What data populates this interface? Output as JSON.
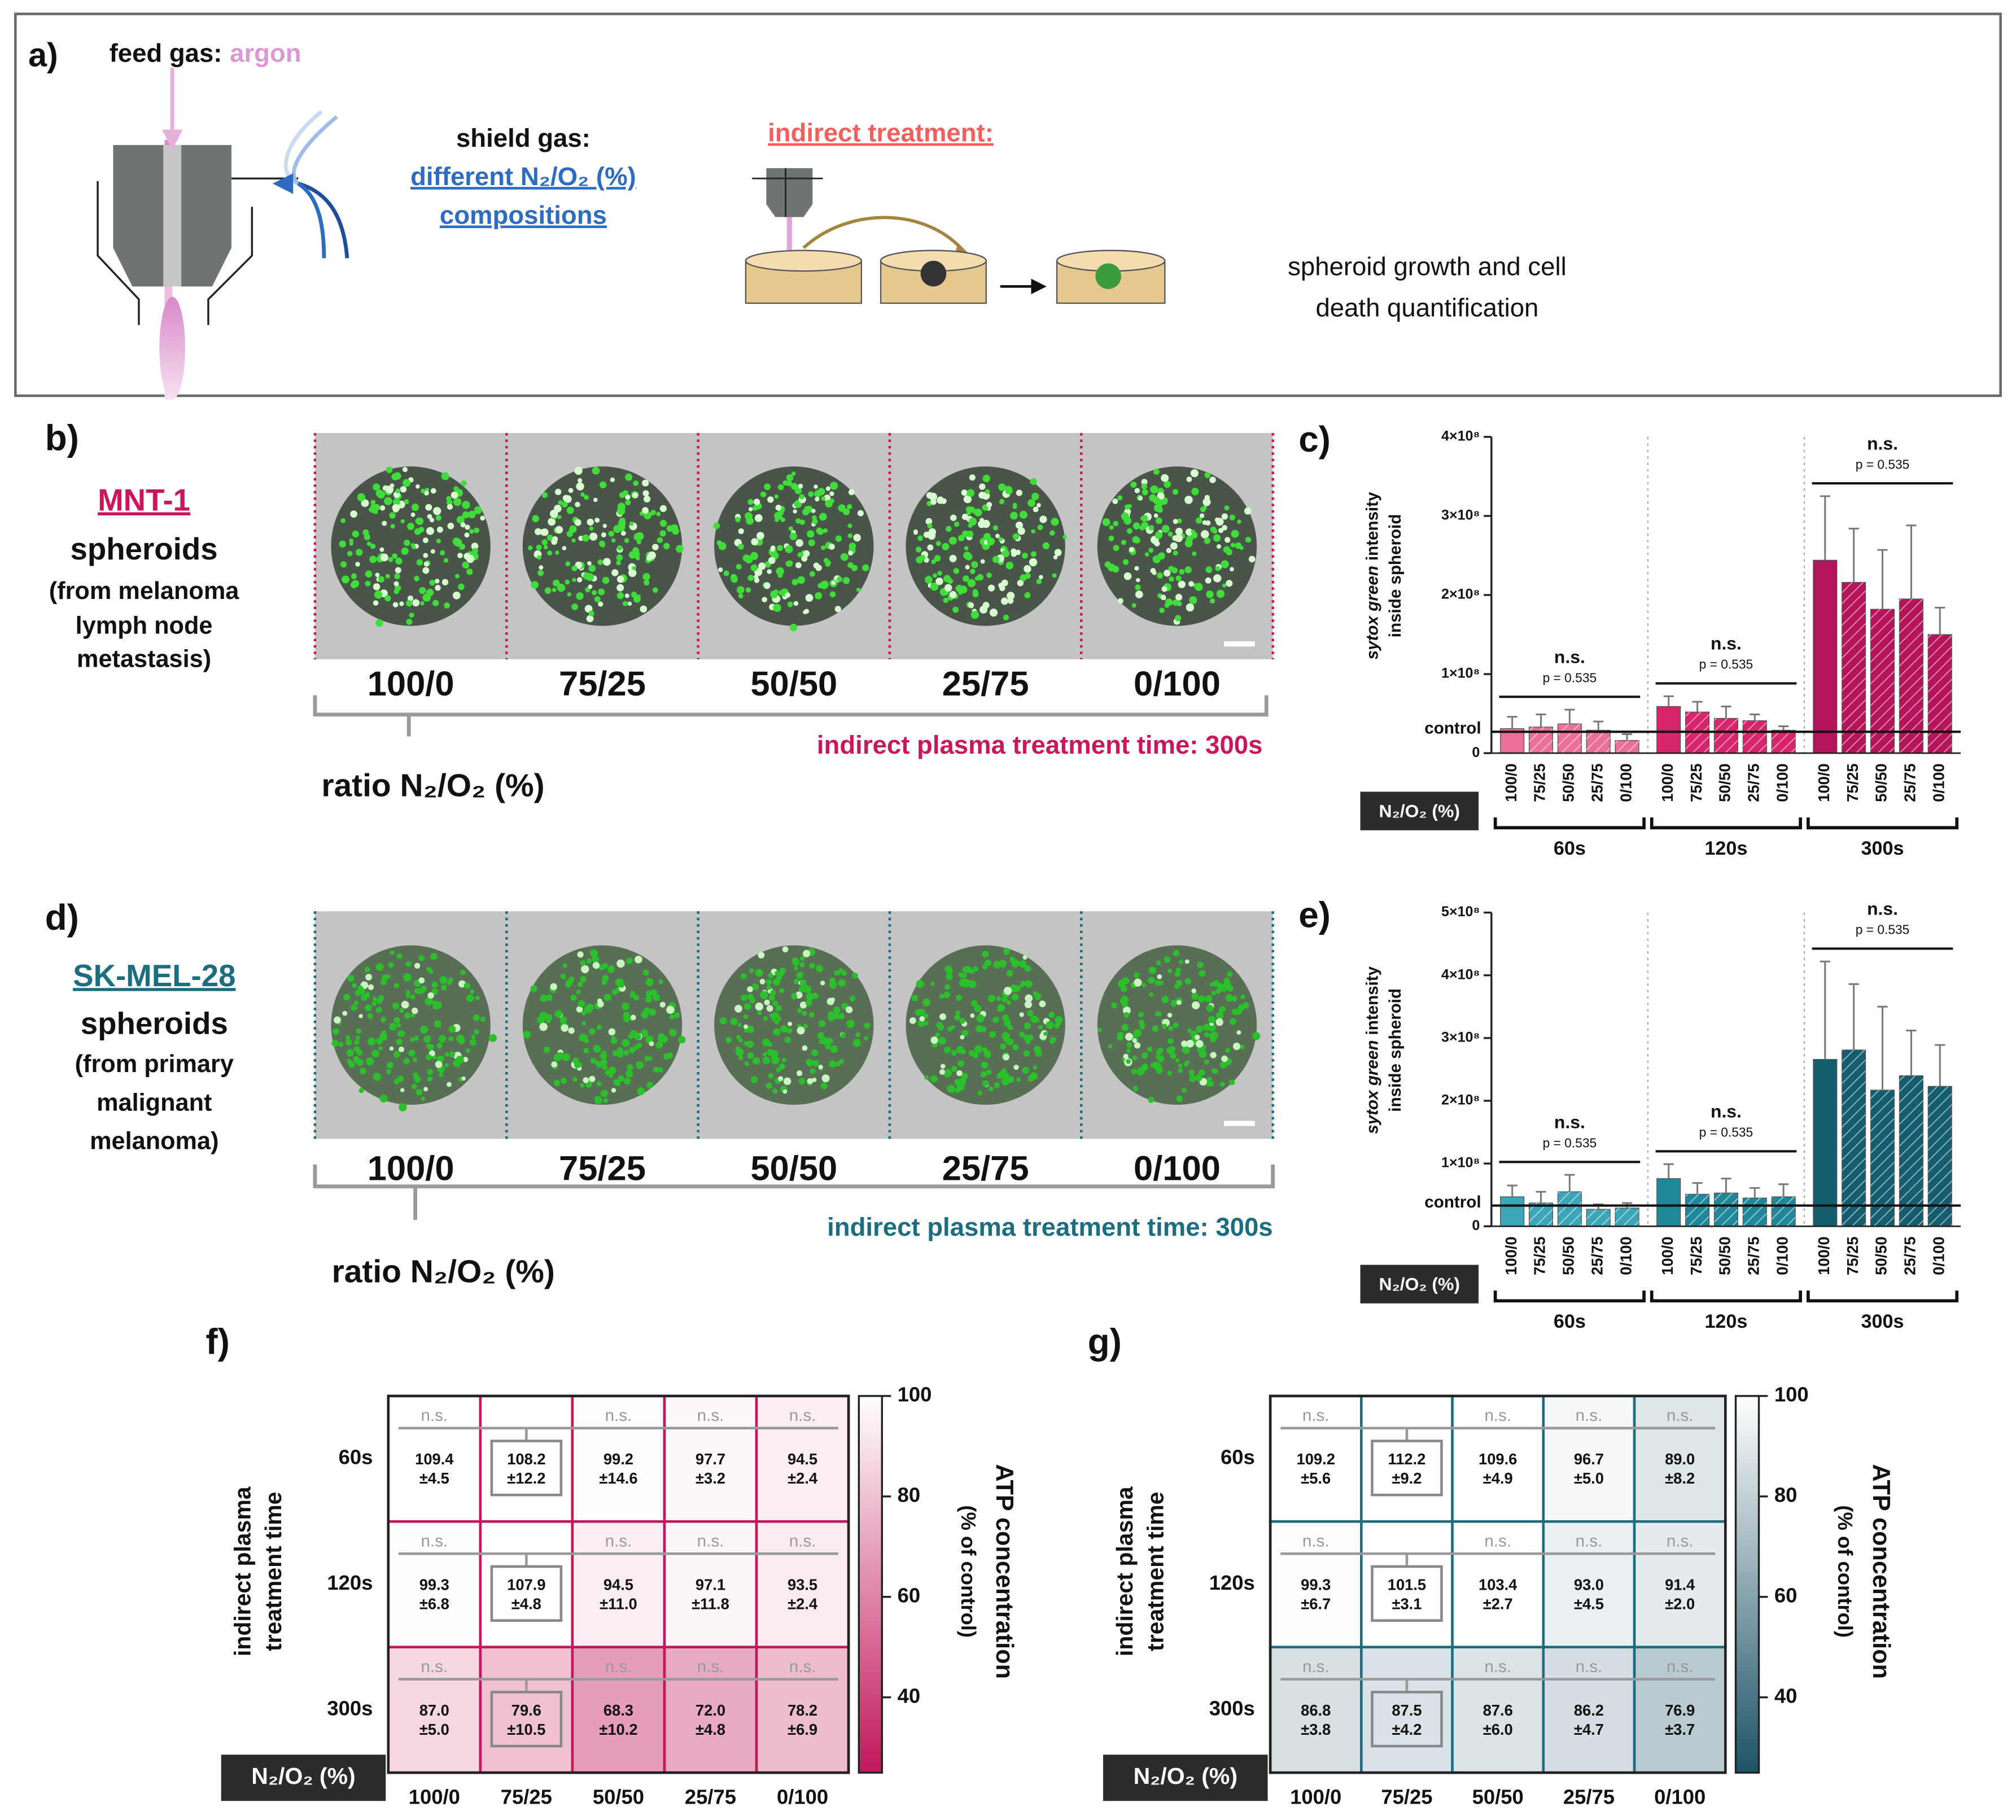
{
  "panel_a": {
    "label": "a)",
    "feed_gas": "feed gas:",
    "feed_gas_value": "argon",
    "shield_gas": "shield gas:",
    "shield_gas_lines": [
      "different N₂/O₂ (%)",
      "compositions"
    ],
    "treatment": "indirect treatment:",
    "readout_lines": [
      "spheroid growth and cell",
      "death quantification"
    ]
  },
  "panel_b": {
    "label": "b)",
    "cell_line": "MNT-1",
    "description": [
      "spheroids",
      "(from melanoma",
      "lymph node",
      "metastasis)"
    ],
    "ratios": [
      "100/0",
      "75/25",
      "50/50",
      "25/75",
      "0/100"
    ],
    "ratio_label": "ratio N₂/O₂ (%)",
    "treatment_time": "indirect plasma treatment time: 300s",
    "color": "#c8175d"
  },
  "panel_d": {
    "label": "d)",
    "cell_line": "SK-MEL-28",
    "description": [
      "spheroids",
      "(from primary",
      "malignant",
      "melanoma)"
    ],
    "ratios": [
      "100/0",
      "75/25",
      "50/50",
      "25/75",
      "0/100"
    ],
    "ratio_label": "ratio N₂/O₂ (%)",
    "treatment_time": "indirect plasma treatment time: 300s",
    "color": "#1b6e80"
  },
  "chart_data": [
    {
      "type": "bar",
      "label": "c)",
      "y_label_italic": "sytox green",
      "y_label_rest": "intensity",
      "y_label_line2": "inside spheroid",
      "categories": [
        "100/0",
        "75/25",
        "50/50",
        "25/75",
        "0/100"
      ],
      "category_title": "N₂/O₂ (%)",
      "series": [
        {
          "name": "60s",
          "color": "#ea6f9a",
          "values": [
            31000000,
            33000000,
            37000000,
            29000000,
            16000000
          ],
          "errors": [
            15000000,
            16000000,
            18000000,
            11000000,
            8000000
          ]
        },
        {
          "name": "120s",
          "color": "#d8246a",
          "values": [
            59000000,
            52000000,
            44000000,
            41000000,
            29000000
          ],
          "errors": [
            13000000,
            13000000,
            15000000,
            8000000,
            5000000
          ]
        },
        {
          "name": "300s",
          "color": "#b5135a",
          "values": [
            244000000,
            216000000,
            182000000,
            195000000,
            150000000
          ],
          "errors": [
            81000000,
            68000000,
            75000000,
            93000000,
            34000000
          ]
        }
      ],
      "ylim": [
        0,
        400000000
      ],
      "yticks": [
        0,
        {
          "value": 100000000,
          "label": "1×10⁸"
        },
        {
          "value": 200000000,
          "label": "2×10⁸"
        },
        {
          "value": 300000000,
          "label": "3×10⁸"
        },
        {
          "value": 400000000,
          "label": "4×10⁸"
        }
      ],
      "control_label": "control",
      "control_value": 27000000,
      "significance": {
        "label": "n.s.",
        "p_label": "p = 0.535"
      }
    },
    {
      "type": "bar",
      "label": "e)",
      "y_label_italic": "sytox green",
      "y_label_rest": "intensity",
      "y_label_line2": "inside spheroid",
      "categories": [
        "100/0",
        "75/25",
        "50/50",
        "25/75",
        "0/100"
      ],
      "category_title": "N₂/O₂ (%)",
      "series": [
        {
          "name": "60s",
          "color": "#3ba6b7",
          "values": [
            47000000,
            37000000,
            55000000,
            27000000,
            29000000
          ],
          "errors": [
            18000000,
            18000000,
            27000000,
            8000000,
            8000000
          ]
        },
        {
          "name": "120s",
          "color": "#1f8799",
          "values": [
            76000000,
            51000000,
            53000000,
            45000000,
            47000000
          ],
          "errors": [
            23000000,
            18000000,
            23000000,
            16000000,
            20000000
          ]
        },
        {
          "name": "300s",
          "color": "#145d6e",
          "values": [
            266000000,
            281000000,
            217000000,
            240000000,
            223000000
          ],
          "errors": [
            156000000,
            105000000,
            133000000,
            72000000,
            66000000
          ]
        }
      ],
      "ylim": [
        0,
        500000000
      ],
      "yticks": [
        0,
        {
          "value": 100000000,
          "label": "1×10⁸"
        },
        {
          "value": 200000000,
          "label": "2×10⁸"
        },
        {
          "value": 300000000,
          "label": "3×10⁸"
        },
        {
          "value": 400000000,
          "label": "4×10⁸"
        },
        {
          "value": 500000000,
          "label": "5×10⁸"
        }
      ],
      "control_label": "control",
      "control_value": 33000000,
      "significance": {
        "label": "n.s.",
        "p_label": "p = 0.535"
      }
    },
    {
      "type": "heatmap",
      "label": "f)",
      "rows": [
        "60s",
        "120s",
        "300s"
      ],
      "categories": [
        "100/0",
        "75/25",
        "50/50",
        "25/75",
        "0/100"
      ],
      "values": [
        [
          109.4,
          108.2,
          99.2,
          97.7,
          94.5
        ],
        [
          99.3,
          107.9,
          94.5,
          97.1,
          93.5
        ],
        [
          87.0,
          79.6,
          68.3,
          72.0,
          78.2
        ]
      ],
      "value_labels": [
        [
          "109.4",
          "108.2",
          "99.2",
          "97.7",
          "94.5"
        ],
        [
          "99.3",
          "107.9",
          "94.5",
          "97.1",
          "93.5"
        ],
        [
          "87.0",
          "79.6",
          "68.3",
          "72.0",
          "78.2"
        ]
      ],
      "errors": [
        [
          4.5,
          12.2,
          14.6,
          3.2,
          2.4
        ],
        [
          6.8,
          4.8,
          11.0,
          11.8,
          2.4
        ],
        [
          5.0,
          10.5,
          10.2,
          4.8,
          6.9
        ]
      ],
      "error_labels": [
        [
          "±4.5",
          "±12.2",
          "±14.6",
          "±3.2",
          "±2.4"
        ],
        [
          "±6.8",
          "±4.8",
          "±11.0",
          "±11.8",
          "±2.4"
        ],
        [
          "±5.0",
          "±10.5",
          "±10.2",
          "±4.8",
          "±6.9"
        ]
      ],
      "y_label": [
        "indirect plasma",
        "treatment time"
      ],
      "x_title": "N₂/O₂ (%)",
      "colorbar_label": [
        "ATP concentration",
        "(% of control)"
      ],
      "clim": [
        25,
        100
      ],
      "cticks": [
        40,
        60,
        80,
        100
      ],
      "colors": [
        "#c2185b",
        "#ffffff"
      ],
      "border_color": "#c2185b",
      "annotation": "n.s.",
      "reference_index": 1
    },
    {
      "type": "heatmap",
      "label": "g)",
      "rows": [
        "60s",
        "120s",
        "300s"
      ],
      "categories": [
        "100/0",
        "75/25",
        "50/50",
        "25/75",
        "0/100"
      ],
      "values": [
        [
          109.2,
          112.2,
          109.6,
          96.7,
          89.0
        ],
        [
          99.3,
          101.5,
          103.4,
          93.0,
          91.4
        ],
        [
          86.8,
          87.5,
          87.6,
          86.2,
          76.9
        ]
      ],
      "value_labels": [
        [
          "109.2",
          "112.2",
          "109.6",
          "96.7",
          "89.0"
        ],
        [
          "99.3",
          "101.5",
          "103.4",
          "93.0",
          "91.4"
        ],
        [
          "86.8",
          "87.5",
          "87.6",
          "86.2",
          "76.9"
        ]
      ],
      "errors": [
        [
          5.6,
          9.2,
          4.9,
          5.0,
          8.2
        ],
        [
          6.7,
          3.1,
          2.7,
          4.5,
          2.0
        ],
        [
          3.8,
          4.2,
          6.0,
          4.7,
          3.7
        ]
      ],
      "error_labels": [
        [
          "±5.6",
          "±9.2",
          "±4.9",
          "±5.0",
          "±8.2"
        ],
        [
          "±6.7",
          "±3.1",
          "±2.7",
          "±4.5",
          "±2.0"
        ],
        [
          "±3.8",
          "±4.2",
          "±6.0",
          "±4.7",
          "±3.7"
        ]
      ],
      "y_label": [
        "indirect plasma",
        "treatment time"
      ],
      "x_title": "N₂/O₂ (%)",
      "colorbar_label": [
        "ATP concentration",
        "(% of control)"
      ],
      "clim": [
        25,
        100
      ],
      "cticks": [
        40,
        60,
        80,
        100
      ],
      "colors": [
        "#1d5366",
        "#ffffff"
      ],
      "border_color": "#1b6e80",
      "annotation": "n.s.",
      "reference_index": 1
    }
  ]
}
